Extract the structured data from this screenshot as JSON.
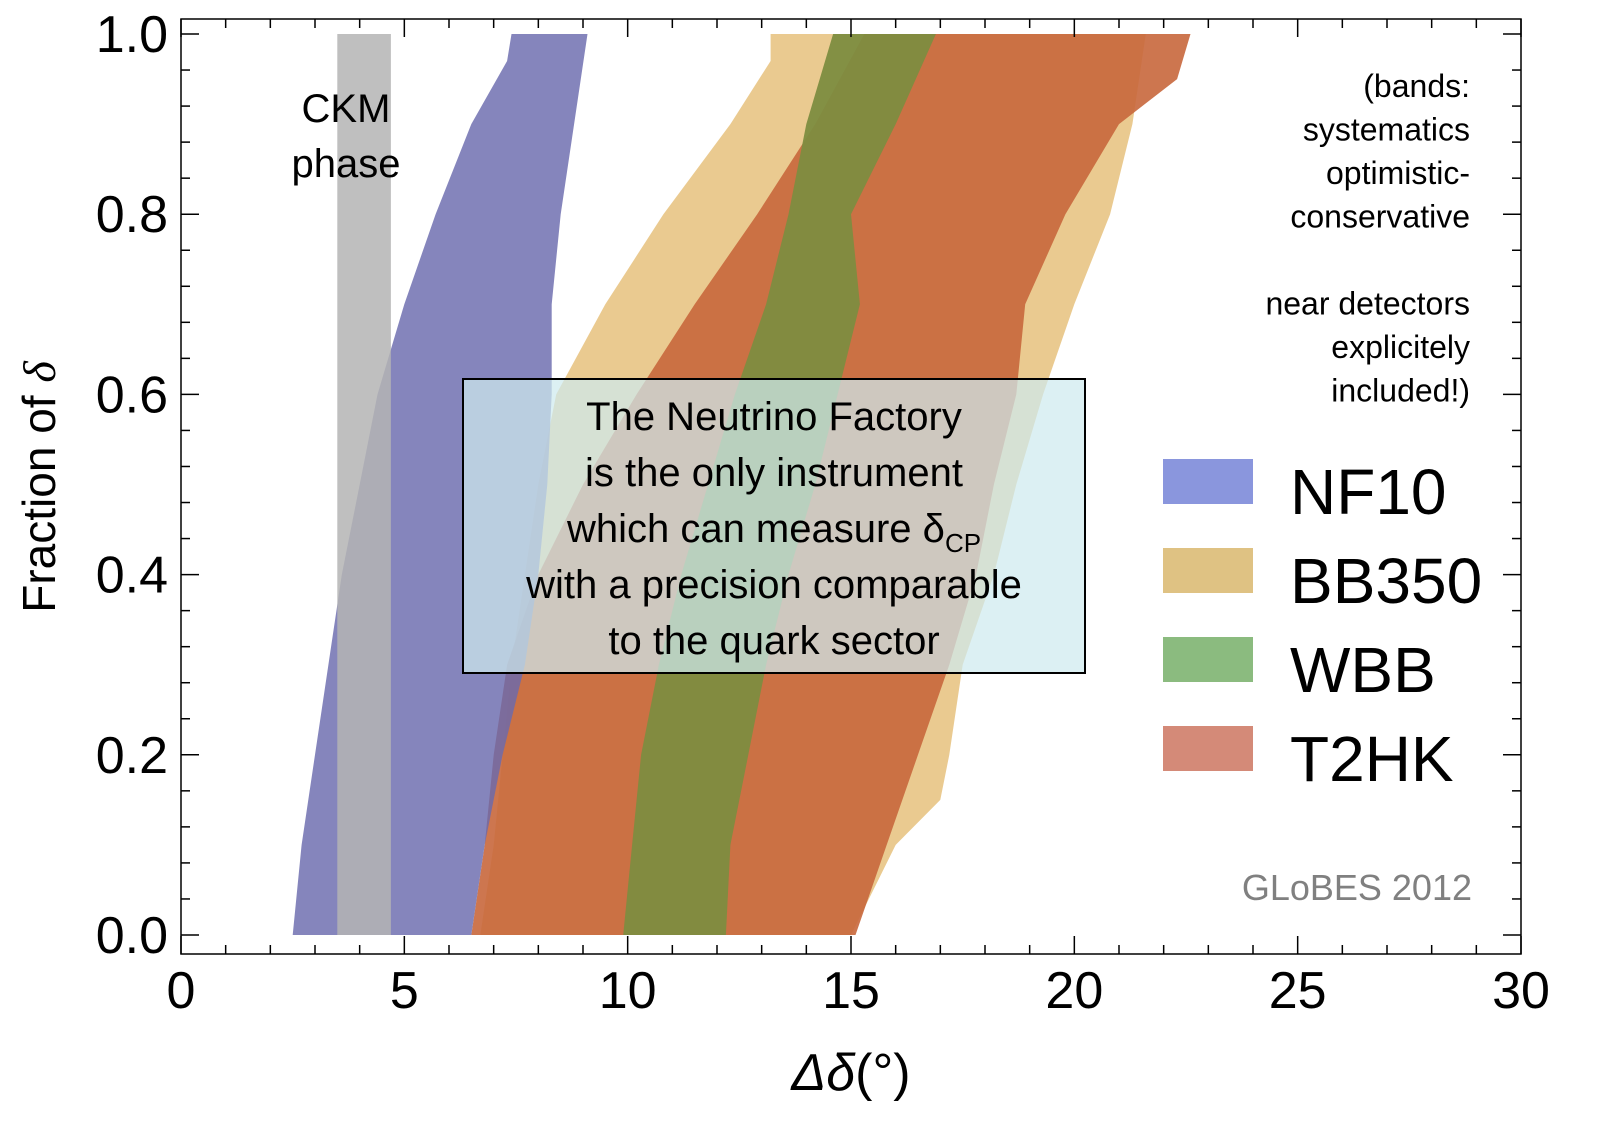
{
  "chart_data": {
    "type": "area",
    "xlabel_main": "Δδ",
    "xlabel_unit": "(°)",
    "ylabel_main": "Fraction of ",
    "ylabel_sym": "δ",
    "xlim": [
      0,
      30
    ],
    "ylim": [
      0,
      1
    ],
    "xticks": [
      0,
      5,
      10,
      15,
      20,
      25,
      30
    ],
    "xtick_labels": [
      "0",
      "5",
      "10",
      "15",
      "20",
      "25",
      "30"
    ],
    "yticks": [
      0,
      0.2,
      0.4,
      0.6,
      0.8,
      1.0
    ],
    "ytick_labels": [
      "0.0",
      "0.2",
      "0.4",
      "0.6",
      "0.8",
      "1.0"
    ],
    "grid": false,
    "legend_position": "right",
    "series": [
      {
        "name": "NF10",
        "color": "#6a6aad",
        "legend_color": "#8a96dd",
        "left": [
          [
            2.5,
            0.0
          ],
          [
            2.7,
            0.1
          ],
          [
            3.0,
            0.2
          ],
          [
            3.3,
            0.3
          ],
          [
            3.6,
            0.4
          ],
          [
            4.0,
            0.5
          ],
          [
            4.4,
            0.6
          ],
          [
            5.0,
            0.7
          ],
          [
            5.7,
            0.8
          ],
          [
            6.5,
            0.9
          ],
          [
            7.3,
            0.97
          ],
          [
            7.4,
            1.0
          ]
        ],
        "right": [
          [
            6.5,
            0.0
          ],
          [
            6.8,
            0.1
          ],
          [
            7.2,
            0.2
          ],
          [
            7.7,
            0.3
          ],
          [
            8.0,
            0.4
          ],
          [
            8.2,
            0.5
          ],
          [
            8.3,
            0.6
          ],
          [
            8.3,
            0.7
          ],
          [
            8.5,
            0.8
          ],
          [
            8.8,
            0.9
          ],
          [
            9.1,
            1.0
          ]
        ]
      },
      {
        "name": "BB350",
        "color": "#e6c17d",
        "legend_color": "#dfc283",
        "left": [
          [
            6.7,
            0.0
          ],
          [
            7.0,
            0.1
          ],
          [
            7.2,
            0.2
          ],
          [
            7.4,
            0.3
          ],
          [
            7.7,
            0.4
          ],
          [
            8.0,
            0.5
          ],
          [
            8.4,
            0.6
          ],
          [
            9.5,
            0.7
          ],
          [
            10.8,
            0.8
          ],
          [
            12.3,
            0.9
          ],
          [
            13.2,
            0.97
          ],
          [
            13.2,
            1.0
          ]
        ],
        "right": [
          [
            15.0,
            0.0
          ],
          [
            16.0,
            0.1
          ],
          [
            17.0,
            0.15
          ],
          [
            17.2,
            0.2
          ],
          [
            17.5,
            0.3
          ],
          [
            18.2,
            0.4
          ],
          [
            18.7,
            0.5
          ],
          [
            19.3,
            0.6
          ],
          [
            20.0,
            0.7
          ],
          [
            20.8,
            0.8
          ],
          [
            21.3,
            0.9
          ],
          [
            21.6,
            1.0
          ]
        ]
      },
      {
        "name": "WBB",
        "color": "#7d8c40",
        "legend_color": "#8bbb7f",
        "left": [
          [
            9.9,
            0.0
          ],
          [
            10.1,
            0.1
          ],
          [
            10.3,
            0.2
          ],
          [
            10.7,
            0.3
          ],
          [
            11.2,
            0.4
          ],
          [
            11.8,
            0.5
          ],
          [
            12.4,
            0.6
          ],
          [
            13.1,
            0.7
          ],
          [
            13.6,
            0.8
          ],
          [
            14.0,
            0.9
          ],
          [
            14.6,
            1.0
          ]
        ],
        "right": [
          [
            12.2,
            0.0
          ],
          [
            12.3,
            0.1
          ],
          [
            12.7,
            0.2
          ],
          [
            13.1,
            0.3
          ],
          [
            13.6,
            0.4
          ],
          [
            14.2,
            0.5
          ],
          [
            14.7,
            0.6
          ],
          [
            15.2,
            0.7
          ],
          [
            15.0,
            0.8
          ],
          [
            16.0,
            0.9
          ],
          [
            16.9,
            1.0
          ]
        ]
      },
      {
        "name": "T2HK",
        "color": "#c8673c",
        "legend_color": "#d48a78",
        "left": [
          [
            6.5,
            0.0
          ],
          [
            6.8,
            0.1
          ],
          [
            7.0,
            0.2
          ],
          [
            7.3,
            0.3
          ],
          [
            8.0,
            0.4
          ],
          [
            9.0,
            0.5
          ],
          [
            10.2,
            0.6
          ],
          [
            11.5,
            0.7
          ],
          [
            12.9,
            0.8
          ],
          [
            14.2,
            0.9
          ],
          [
            15.3,
            1.0
          ]
        ],
        "right": [
          [
            15.1,
            0.0
          ],
          [
            15.8,
            0.1
          ],
          [
            16.5,
            0.2
          ],
          [
            17.2,
            0.3
          ],
          [
            17.8,
            0.4
          ],
          [
            18.2,
            0.5
          ],
          [
            18.7,
            0.6
          ],
          [
            18.9,
            0.7
          ],
          [
            19.8,
            0.8
          ],
          [
            21.0,
            0.9
          ],
          [
            22.3,
            0.95
          ],
          [
            22.6,
            1.0
          ]
        ]
      },
      {
        "name": "CKM phase",
        "color": "#b4b4b4",
        "legend_color": "#b4b4b4",
        "left": [
          [
            3.5,
            0.0
          ],
          [
            3.5,
            1.0
          ]
        ],
        "right": [
          [
            4.7,
            0.0
          ],
          [
            4.7,
            1.0
          ]
        ]
      }
    ],
    "annotations": {
      "ckm_line1": "CKM",
      "ckm_line2": "phase",
      "note_lines": [
        "(bands:",
        "systematics",
        "optimistic-",
        "conservative",
        "",
        "near detectors",
        "explicitely",
        "included!)"
      ],
      "box_lines": [
        {
          "text": "The Neutrino Factory",
          "sub": ""
        },
        {
          "text": "is the only instrument",
          "sub": ""
        },
        {
          "text": "which can measure δ",
          "sub": "CP"
        },
        {
          "text": "with a precision comparable",
          "sub": ""
        },
        {
          "text": "to the quark sector",
          "sub": ""
        }
      ],
      "credit": "GLoBES 2012"
    },
    "legend": [
      "NF10",
      "BB350",
      "WBB",
      "T2HK"
    ]
  },
  "colors": {
    "box_fill": "#cfeaee",
    "credit": "#808080"
  }
}
